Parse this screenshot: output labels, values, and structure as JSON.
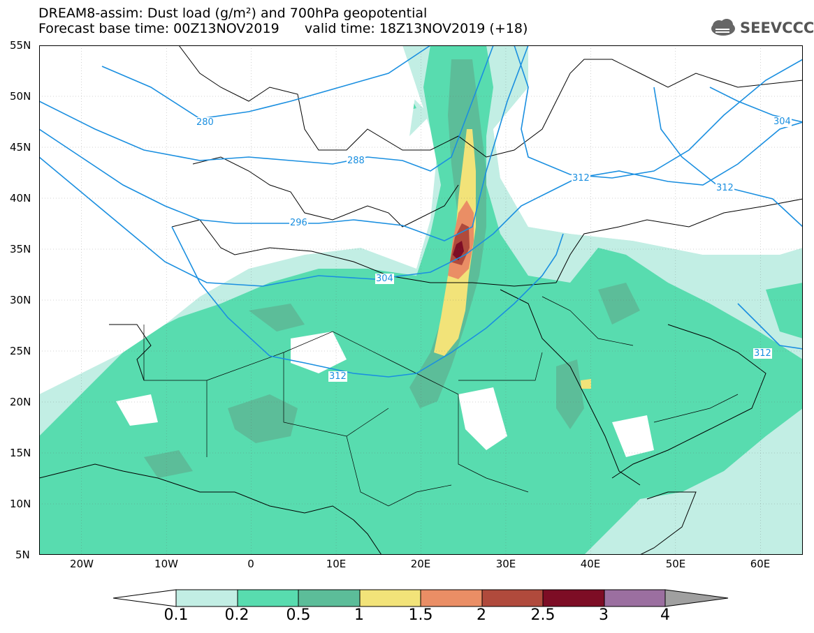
{
  "title_line1": "DREAM8-assim: Dust load (g/m²) and 700hPa geopotential",
  "title_line2": "Forecast base time: 00Z13NOV2019      valid time: 18Z13NOV2019 (+18)",
  "logo_text": "SEEVCCC",
  "y_axis_labels": [
    "55N",
    "50N",
    "45N",
    "40N",
    "35N",
    "30N",
    "25N",
    "20N",
    "15N",
    "10N",
    "5N"
  ],
  "x_axis_labels": [
    "20W",
    "10W",
    "0",
    "10E",
    "20E",
    "30E",
    "40E",
    "50E",
    "60E"
  ],
  "contour_labels": [
    "280",
    "288",
    "296",
    "304",
    "312",
    "312",
    "312",
    "312",
    "304"
  ],
  "colorbar": {
    "ticks": [
      "0.1",
      "0.2",
      "0.5",
      "1",
      "1.5",
      "2",
      "2.5",
      "3",
      "4"
    ],
    "colors": [
      "#ffffff",
      "#c2eee4",
      "#58dcaf",
      "#5cbd99",
      "#f2e379",
      "#ea8e65",
      "#b04a3c",
      "#7d0d25",
      "#9b6fa0",
      "#a0a0a0"
    ]
  },
  "map": {
    "lat_range": [
      5,
      55
    ],
    "lon_range": [
      -25,
      65
    ],
    "dust_colors": {
      "0.1": "#c2eee4",
      "0.2": "#58dcaf",
      "0.5": "#5cbd99",
      "1": "#f2e379",
      "1.5": "#ea8e65",
      "2": "#b04a3c",
      "2.5": "#7d0d25"
    },
    "contour_color": "#1a8fe0"
  }
}
